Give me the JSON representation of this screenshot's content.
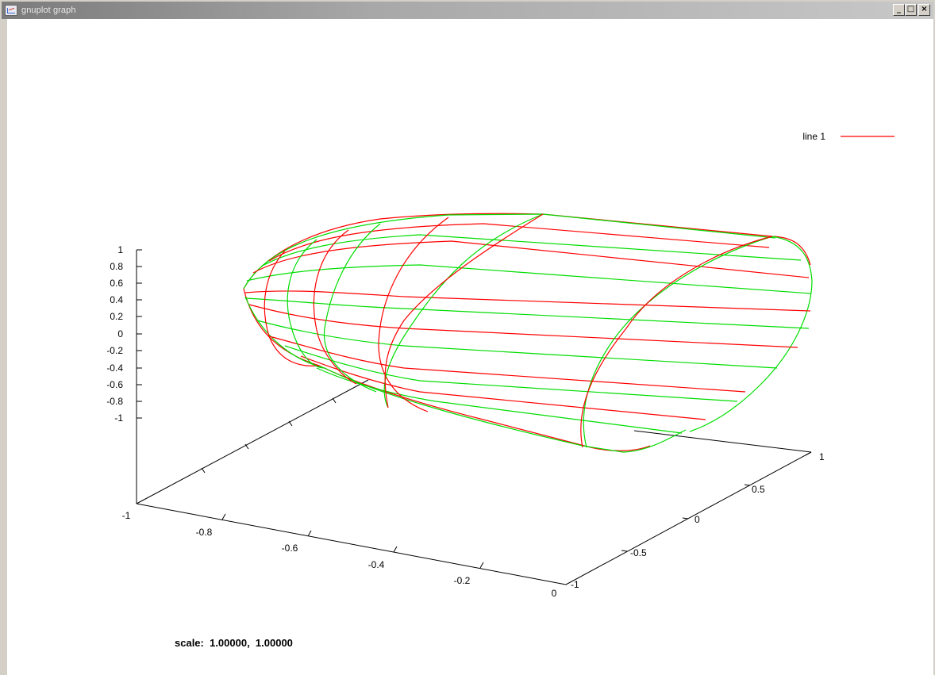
{
  "window": {
    "title": "gnuplot graph",
    "buttons": {
      "minimize": "_",
      "maximize": "□",
      "close": "×"
    }
  },
  "status": "scale:  1.00000,  1.00000",
  "legend": {
    "label": "line 1",
    "color": "#ff0000"
  },
  "colors": {
    "surface_front": "#ff0000",
    "surface_back": "#00dd00",
    "axes": "#000000"
  },
  "chart_data": {
    "type": "surface",
    "style": "3d mesh (wireframe), hidden3d",
    "z_ticks": [
      "1",
      "0.8",
      "0.6",
      "0.4",
      "0.2",
      "0",
      "-0.2",
      "-0.4",
      "-0.6",
      "-0.8",
      "-1"
    ],
    "x_ticks": [
      "-1",
      "-0.8",
      "-0.6",
      "-0.4",
      "-0.2",
      "0"
    ],
    "y_ticks": [
      "-1",
      "-0.5",
      "0",
      "0.5",
      "1"
    ],
    "xrange": [
      -1,
      0
    ],
    "yrange": [
      -1,
      1
    ],
    "zrange": [
      -1,
      1
    ],
    "series": [
      {
        "name": "line 1"
      }
    ]
  }
}
